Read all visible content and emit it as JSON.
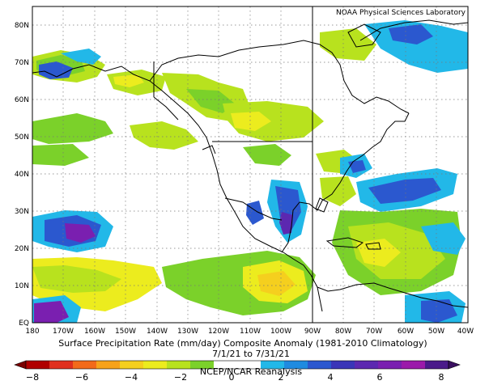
{
  "credit": "NOAA Physical Sciences Laboratory",
  "title_line1": "Surface Precipitation Rate (mm/day) Composite Anomaly (1981-2010 Climatology)",
  "title_line2": "7/1/21 to 7/31/21",
  "title_line3": "NCEP/NCAR Reanalysis",
  "lat_labels": [
    "80N",
    "70N",
    "60N",
    "50N",
    "40N",
    "30N",
    "20N",
    "10N",
    "EQ"
  ],
  "lon_labels": [
    "180",
    "170W",
    "160W",
    "150W",
    "140W",
    "130W",
    "120W",
    "110W",
    "100W",
    "90W",
    "80W",
    "70W",
    "60W",
    "50W",
    "40W"
  ],
  "colorbar_labels": [
    "−8",
    "−6",
    "−4",
    "−2",
    "0",
    "2",
    "4",
    "6",
    "8"
  ],
  "colorbar_colors": [
    "#b00000",
    "#e0301e",
    "#f26a1a",
    "#f7a21a",
    "#f5cf1e",
    "#ecec1e",
    "#b8e21e",
    "#7bd12a",
    "#ffffff",
    "#ffffff",
    "#22b8e8",
    "#1f8be0",
    "#2b58cf",
    "#3a35b8",
    "#5c28b0",
    "#7a1fb0",
    "#9b1aaa",
    "#4a1a8a"
  ],
  "legend_colors": {
    "dry_strong": "#e0301e",
    "dry": "#f7a21a",
    "dry_weak": "#ecec1e",
    "neutral_low": "#7bd12a",
    "wet_weak": "#22b8e8",
    "wet": "#2b58cf",
    "wet_strong": "#7a1fb0"
  }
}
